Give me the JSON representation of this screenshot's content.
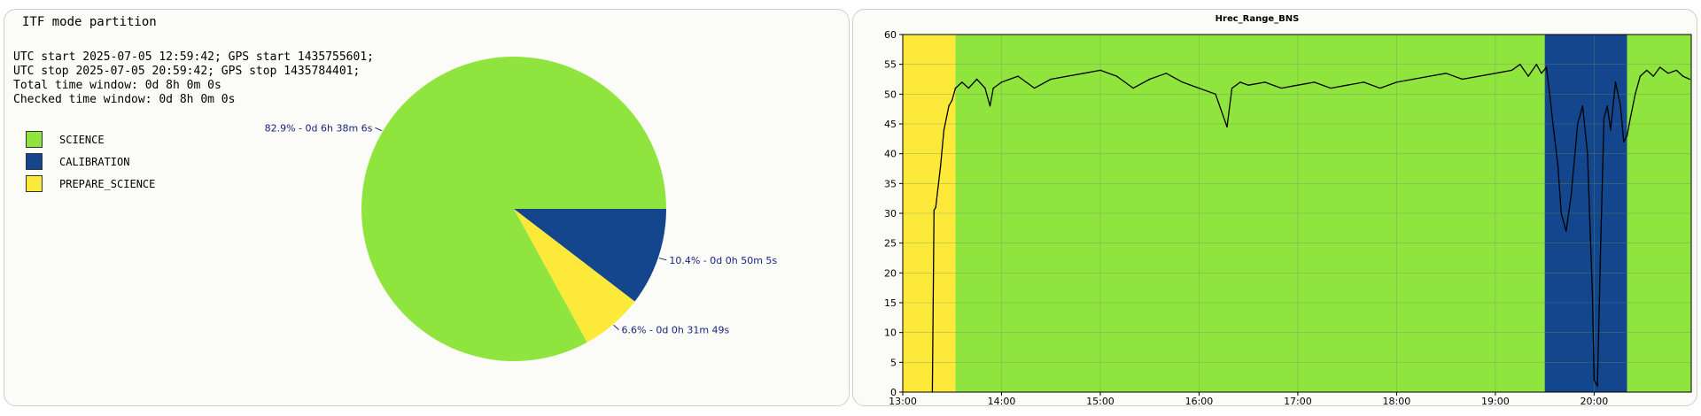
{
  "pie_panel": {
    "title": "ITF mode partition",
    "info_lines": [
      "UTC start 2025-07-05 12:59:42; GPS start 1435755601;",
      "UTC stop 2025-07-05 20:59:42; GPS stop 1435784401;",
      "Total time window: 0d 8h 0m 0s",
      "Checked time window: 0d 8h 0m 0s"
    ],
    "legend": [
      {
        "label": "SCIENCE",
        "color": "#8fe53d"
      },
      {
        "label": "CALIBRATION",
        "color": "#13468c"
      },
      {
        "label": "PREPARE_SCIENCE",
        "color": "#fde93a"
      }
    ]
  },
  "line_panel": {
    "title": "Hrec_Range_BNS"
  },
  "chart_data": [
    {
      "type": "pie",
      "title": "ITF mode partition",
      "slices": [
        {
          "label": "SCIENCE",
          "percent": 82.9,
          "duration": "0d 6h 38m 6s",
          "value_label": "82.9% - 0d 6h 38m 6s",
          "color": "#8fe53d"
        },
        {
          "label": "CALIBRATION",
          "percent": 10.4,
          "duration": "0d 0h 50m 5s",
          "value_label": "10.4% - 0d 0h 50m 5s",
          "color": "#13468c"
        },
        {
          "label": "PREPARE_SCIENCE",
          "percent": 6.6,
          "duration": "0d 0h 31m 49s",
          "value_label": "6.6% - 0d 0h 31m 49s",
          "color": "#fde93a"
        }
      ]
    },
    {
      "type": "line",
      "title": "Hrec_Range_BNS",
      "xlabel": "",
      "ylabel": "",
      "xlim": [
        "13:00",
        "20:59"
      ],
      "ylim": [
        0,
        60
      ],
      "x_ticks": [
        "13:00",
        "14:00",
        "15:00",
        "16:00",
        "17:00",
        "18:00",
        "19:00",
        "20:00"
      ],
      "y_ticks": [
        0,
        5,
        10,
        15,
        20,
        25,
        30,
        35,
        40,
        45,
        50,
        55,
        60
      ],
      "grid": true,
      "background_bands": [
        {
          "mode": "PREPARE_SCIENCE",
          "from": "13:00",
          "to": "13:32",
          "color": "#fde93a"
        },
        {
          "mode": "SCIENCE",
          "from": "13:32",
          "to": "19:30",
          "color": "#8fe53d"
        },
        {
          "mode": "CALIBRATION",
          "from": "19:30",
          "to": "20:20",
          "color": "#13468c"
        },
        {
          "mode": "SCIENCE",
          "from": "20:20",
          "to": "20:59",
          "color": "#8fe53d"
        }
      ],
      "series": [
        {
          "color": "#000000",
          "x": [
            "13:18",
            "13:19",
            "13:20",
            "13:23",
            "13:25",
            "13:28",
            "13:30",
            "13:32",
            "13:36",
            "13:40",
            "13:45",
            "13:50",
            "13:53",
            "13:55",
            "14:00",
            "14:05",
            "14:10",
            "14:15",
            "14:20",
            "14:30",
            "14:40",
            "14:50",
            "15:00",
            "15:10",
            "15:20",
            "15:30",
            "15:40",
            "15:50",
            "16:00",
            "16:10",
            "16:17",
            "16:20",
            "16:25",
            "16:30",
            "16:40",
            "16:50",
            "17:00",
            "17:10",
            "17:20",
            "17:30",
            "17:40",
            "17:50",
            "18:00",
            "18:10",
            "18:20",
            "18:30",
            "18:40",
            "18:50",
            "19:00",
            "19:10",
            "19:15",
            "19:20",
            "19:25",
            "19:28",
            "19:31",
            "19:33",
            "19:35",
            "19:38",
            "19:40",
            "19:43",
            "19:46",
            "19:50",
            "19:53",
            "19:56",
            "19:59",
            "20:00",
            "20:02",
            "20:04",
            "20:06",
            "20:08",
            "20:10",
            "20:13",
            "20:16",
            "20:18",
            "20:20",
            "20:22",
            "20:25",
            "20:28",
            "20:32",
            "20:36",
            "20:40",
            "20:45",
            "20:50",
            "20:54",
            "20:58"
          ],
          "y": [
            0,
            30.5,
            31,
            38,
            44,
            48,
            49,
            51,
            52,
            51,
            52.5,
            51,
            48,
            51,
            52,
            52.5,
            53,
            52,
            51,
            52.5,
            53,
            53.5,
            54,
            53,
            51,
            52.5,
            53.5,
            52,
            51,
            50,
            44.5,
            51,
            52,
            51.5,
            52,
            51,
            51.5,
            52,
            51,
            51.5,
            52,
            51,
            52,
            52.5,
            53,
            53.5,
            52.5,
            53,
            53.5,
            54,
            55,
            53,
            55,
            53.5,
            54.5,
            50,
            45,
            38,
            30,
            27,
            33,
            45,
            48,
            40,
            16,
            2,
            1,
            25,
            46,
            48,
            44,
            52,
            48,
            42,
            43,
            46,
            50,
            53,
            54,
            53,
            54.5,
            53.5,
            54,
            53,
            52.5
          ]
        }
      ]
    }
  ]
}
